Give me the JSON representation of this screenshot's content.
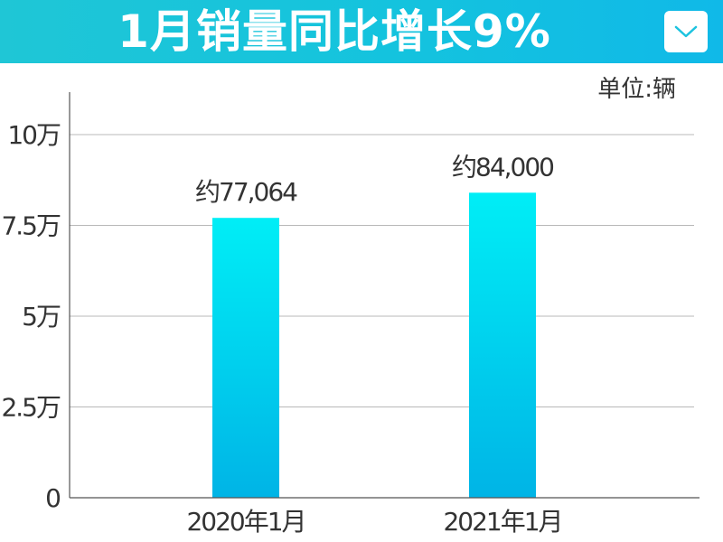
{
  "header": {
    "title": "1月销量同比增长9%",
    "dropdown_icon": "chevron-down-icon"
  },
  "colors": {
    "header_start": "#1fc6d6",
    "header_end": "#10b9e8",
    "bar_top": "#00eef6",
    "bar_bottom": "#00b4e6",
    "grid": "#b8b8b8",
    "axis": "#555555",
    "text": "#333333"
  },
  "chart_data": {
    "type": "bar",
    "categories": [
      "2020年1月",
      "2021年1月"
    ],
    "values": [
      77064,
      84000
    ],
    "value_labels": [
      "约77,064",
      "约84,000"
    ],
    "unit_label": "单位:辆",
    "ylim": [
      0,
      110000
    ],
    "yticks": [
      0,
      25000,
      50000,
      75000,
      100000
    ],
    "ytick_labels": [
      "0",
      "2.5万",
      "5万",
      "7.5万",
      "10万"
    ],
    "grid": true,
    "xlabel": "",
    "ylabel": ""
  }
}
